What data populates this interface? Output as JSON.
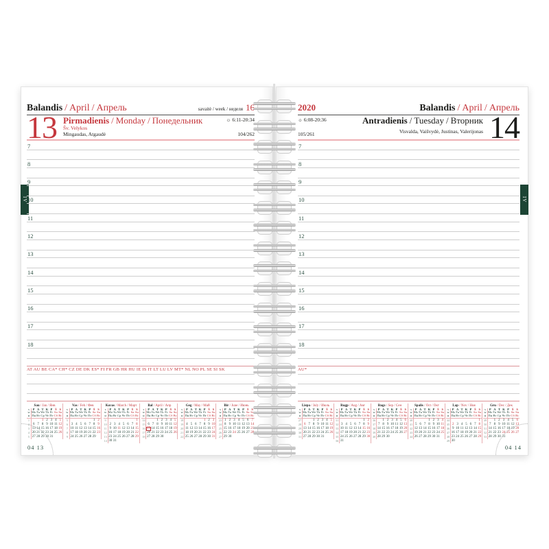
{
  "ui": {
    "sep": "/"
  },
  "hours": [
    "7",
    "8",
    "9",
    "10",
    "11",
    "12",
    "13",
    "14",
    "15",
    "16",
    "17",
    "18"
  ],
  "left_page": {
    "month_title": {
      "lt": "Balandis",
      "en": "April",
      "ru": "Апрель"
    },
    "week_label": "savaitė / week / неделя",
    "week_number": "16",
    "day_number": "13",
    "day_title": {
      "lt": "Pirmadienis",
      "en": "Monday",
      "ru": "Понедельник"
    },
    "holiday": "Šv. Velykos",
    "name_days": "Mingaudas, Atgaudė",
    "sun_icon": "☼",
    "sun_times": "6:11-20:34",
    "day_of_year": "104/262",
    "holiday_countries": "AT AU BE CA* CH* CZ DE DK ES* FI FR GB HR HU IE IS IT LT LU LV MT* NL NO PL SE SI SK",
    "footer_date": "04 13",
    "month_tab": "IV"
  },
  "right_page": {
    "year": "2020",
    "month_title": {
      "lt": "Balandis",
      "en": "April",
      "ru": "Апрель"
    },
    "day_number": "14",
    "day_title": {
      "lt": "Antradienis",
      "en": "Tuesday",
      "ru": "Вторник"
    },
    "name_days": "Visvalda, Vaišvydė, Justinas, Valerijonas",
    "sun_icon": "☼",
    "sun_times": "6:08-20:36",
    "day_of_year": "105/261",
    "holiday_countries": "AU*",
    "footer_date": "04 14",
    "month_tab": "IV"
  },
  "mini_calendars": {
    "week_col_labels": [
      "s",
      "w",
      "н"
    ],
    "weekday_rows": [
      [
        "P",
        "A",
        "T",
        "K",
        "P",
        "Š",
        "S"
      ],
      [
        "Mo",
        "Tu",
        "We",
        "Th",
        "Fr",
        "Sa",
        "Su"
      ],
      [
        "Пн",
        "Вт",
        "Ср",
        "Чт",
        "Пт",
        "Сб",
        "Вс"
      ]
    ],
    "months": [
      {
        "labels": [
          "Sau",
          "Jan",
          "Янв"
        ],
        "red": [
          1,
          5,
          12,
          19,
          26
        ],
        "boxed": null,
        "weeks": [
          {
            "n": "1",
            "d": [
              "",
              "",
              "1",
              "2",
              "3",
              "4",
              "5"
            ]
          },
          {
            "n": "2",
            "d": [
              "6",
              "7",
              "8",
              "9",
              "10",
              "11",
              "12"
            ]
          },
          {
            "n": "3",
            "d": [
              "13",
              "14",
              "15",
              "16",
              "17",
              "18",
              "19"
            ]
          },
          {
            "n": "4",
            "d": [
              "20",
              "21",
              "22",
              "23",
              "24",
              "25",
              "26"
            ]
          },
          {
            "n": "5",
            "d": [
              "27",
              "28",
              "29",
              "30",
              "31",
              "",
              ""
            ]
          }
        ]
      },
      {
        "labels": [
          "Vas",
          "Feb",
          "Фев"
        ],
        "red": [
          2,
          9,
          16,
          23
        ],
        "boxed": null,
        "weeks": [
          {
            "n": "5",
            "d": [
              "",
              "",
              "",
              "",
              "",
              "1",
              "2"
            ]
          },
          {
            "n": "6",
            "d": [
              "3",
              "4",
              "5",
              "6",
              "7",
              "8",
              "9"
            ]
          },
          {
            "n": "7",
            "d": [
              "10",
              "11",
              "12",
              "13",
              "14",
              "15",
              "16"
            ]
          },
          {
            "n": "8",
            "d": [
              "17",
              "18",
              "19",
              "20",
              "21",
              "22",
              "23"
            ]
          },
          {
            "n": "9",
            "d": [
              "24",
              "25",
              "26",
              "27",
              "28",
              "29",
              ""
            ]
          }
        ]
      },
      {
        "labels": [
          "Kovas",
          "March",
          "Март"
        ],
        "red": [
          1,
          8,
          11,
          15,
          22,
          29
        ],
        "boxed": null,
        "weeks": [
          {
            "n": "9",
            "d": [
              "",
              "",
              "",
              "",
              "",
              "",
              "1"
            ]
          },
          {
            "n": "10",
            "d": [
              "2",
              "3",
              "4",
              "5",
              "6",
              "7",
              "8"
            ]
          },
          {
            "n": "11",
            "d": [
              "9",
              "10",
              "11",
              "12",
              "13",
              "14",
              "15"
            ]
          },
          {
            "n": "12",
            "d": [
              "16",
              "17",
              "18",
              "19",
              "20",
              "21",
              "22"
            ]
          },
          {
            "n": "13",
            "d": [
              "23",
              "24",
              "25",
              "26",
              "27",
              "28",
              "29"
            ]
          },
          {
            "n": "14",
            "d": [
              "30",
              "31",
              "",
              "",
              "",
              "",
              ""
            ]
          }
        ]
      },
      {
        "labels": [
          "Bal",
          "April",
          "Апр"
        ],
        "red": [
          5,
          12,
          13,
          19,
          26
        ],
        "boxed": 13,
        "weeks": [
          {
            "n": "14",
            "d": [
              "",
              "",
              "1",
              "2",
              "3",
              "4",
              "5"
            ]
          },
          {
            "n": "15",
            "d": [
              "6",
              "7",
              "8",
              "9",
              "10",
              "11",
              "12"
            ]
          },
          {
            "n": "16",
            "d": [
              "13",
              "14",
              "15",
              "16",
              "17",
              "18",
              "19"
            ]
          },
          {
            "n": "17",
            "d": [
              "20",
              "21",
              "22",
              "23",
              "24",
              "25",
              "26"
            ]
          },
          {
            "n": "18",
            "d": [
              "27",
              "28",
              "29",
              "30",
              "",
              "",
              ""
            ]
          }
        ]
      },
      {
        "labels": [
          "Geg",
          "May",
          "Май"
        ],
        "red": [
          1,
          3,
          10,
          17,
          24,
          31
        ],
        "boxed": null,
        "weeks": [
          {
            "n": "18",
            "d": [
              "",
              "",
              "",
              "",
              "1",
              "2",
              "3"
            ]
          },
          {
            "n": "19",
            "d": [
              "4",
              "5",
              "6",
              "7",
              "8",
              "9",
              "10"
            ]
          },
          {
            "n": "20",
            "d": [
              "11",
              "12",
              "13",
              "14",
              "15",
              "16",
              "17"
            ]
          },
          {
            "n": "21",
            "d": [
              "18",
              "19",
              "20",
              "21",
              "22",
              "23",
              "24"
            ]
          },
          {
            "n": "22",
            "d": [
              "25",
              "26",
              "27",
              "28",
              "29",
              "30",
              "31"
            ]
          }
        ]
      },
      {
        "labels": [
          "Bir",
          "June",
          "Июнь"
        ],
        "red": [
          7,
          14,
          21,
          24,
          28
        ],
        "boxed": null,
        "weeks": [
          {
            "n": "23",
            "d": [
              "1",
              "2",
              "3",
              "4",
              "5",
              "6",
              "7"
            ]
          },
          {
            "n": "24",
            "d": [
              "8",
              "9",
              "10",
              "11",
              "12",
              "13",
              "14"
            ]
          },
          {
            "n": "25",
            "d": [
              "15",
              "16",
              "17",
              "18",
              "19",
              "20",
              "21"
            ]
          },
          {
            "n": "26",
            "d": [
              "22",
              "23",
              "24",
              "25",
              "26",
              "27",
              "28"
            ]
          },
          {
            "n": "27",
            "d": [
              "29",
              "30",
              "",
              "",
              "",
              "",
              ""
            ]
          }
        ]
      },
      {
        "labels": [
          "Liepa",
          "July",
          "Июль"
        ],
        "red": [
          5,
          6,
          12,
          19,
          26
        ],
        "boxed": null,
        "weeks": [
          {
            "n": "27",
            "d": [
              "",
              "",
              "1",
              "2",
              "3",
              "4",
              "5"
            ]
          },
          {
            "n": "28",
            "d": [
              "6",
              "7",
              "8",
              "9",
              "10",
              "11",
              "12"
            ]
          },
          {
            "n": "29",
            "d": [
              "13",
              "14",
              "15",
              "16",
              "17",
              "18",
              "19"
            ]
          },
          {
            "n": "30",
            "d": [
              "20",
              "21",
              "22",
              "23",
              "24",
              "25",
              "26"
            ]
          },
          {
            "n": "31",
            "d": [
              "27",
              "28",
              "29",
              "30",
              "31",
              "",
              ""
            ]
          }
        ]
      },
      {
        "labels": [
          "Rugp",
          "Aug",
          "Авг"
        ],
        "red": [
          2,
          9,
          15,
          16,
          23,
          30
        ],
        "boxed": null,
        "weeks": [
          {
            "n": "31",
            "d": [
              "",
              "",
              "",
              "",
              "",
              "1",
              "2"
            ]
          },
          {
            "n": "32",
            "d": [
              "3",
              "4",
              "5",
              "6",
              "7",
              "8",
              "9"
            ]
          },
          {
            "n": "33",
            "d": [
              "10",
              "11",
              "12",
              "13",
              "14",
              "15",
              "16"
            ]
          },
          {
            "n": "34",
            "d": [
              "17",
              "18",
              "19",
              "20",
              "21",
              "22",
              "23"
            ]
          },
          {
            "n": "35",
            "d": [
              "24",
              "25",
              "26",
              "27",
              "28",
              "29",
              "30"
            ]
          },
          {
            "n": "36",
            "d": [
              "31",
              "",
              "",
              "",
              "",
              "",
              ""
            ]
          }
        ]
      },
      {
        "labels": [
          "Rugs",
          "Sep",
          "Сен"
        ],
        "red": [
          6,
          13,
          20,
          27
        ],
        "boxed": null,
        "weeks": [
          {
            "n": "36",
            "d": [
              "",
              "1",
              "2",
              "3",
              "4",
              "5",
              "6"
            ]
          },
          {
            "n": "37",
            "d": [
              "7",
              "8",
              "9",
              "10",
              "11",
              "12",
              "13"
            ]
          },
          {
            "n": "38",
            "d": [
              "14",
              "15",
              "16",
              "17",
              "18",
              "19",
              "20"
            ]
          },
          {
            "n": "39",
            "d": [
              "21",
              "22",
              "23",
              "24",
              "25",
              "26",
              "27"
            ]
          },
          {
            "n": "40",
            "d": [
              "28",
              "29",
              "30",
              "",
              "",
              "",
              ""
            ]
          }
        ]
      },
      {
        "labels": [
          "Spalis",
          "Oct",
          "Окт"
        ],
        "red": [
          4,
          11,
          18,
          25
        ],
        "boxed": null,
        "weeks": [
          {
            "n": "40",
            "d": [
              "",
              "",
              "",
              "1",
              "2",
              "3",
              "4"
            ]
          },
          {
            "n": "41",
            "d": [
              "5",
              "6",
              "7",
              "8",
              "9",
              "10",
              "11"
            ]
          },
          {
            "n": "42",
            "d": [
              "12",
              "13",
              "14",
              "15",
              "16",
              "17",
              "18"
            ]
          },
          {
            "n": "43",
            "d": [
              "19",
              "20",
              "21",
              "22",
              "23",
              "24",
              "25"
            ]
          },
          {
            "n": "44",
            "d": [
              "26",
              "27",
              "28",
              "29",
              "30",
              "31",
              ""
            ]
          }
        ]
      },
      {
        "labels": [
          "Lap",
          "Nov",
          "Ноя"
        ],
        "red": [
          1,
          2,
          8,
          15,
          22,
          29
        ],
        "boxed": null,
        "weeks": [
          {
            "n": "44",
            "d": [
              "",
              "",
              "",
              "",
              "",
              "",
              "1"
            ]
          },
          {
            "n": "45",
            "d": [
              "2",
              "3",
              "4",
              "5",
              "6",
              "7",
              "8"
            ]
          },
          {
            "n": "46",
            "d": [
              "9",
              "10",
              "11",
              "12",
              "13",
              "14",
              "15"
            ]
          },
          {
            "n": "47",
            "d": [
              "16",
              "17",
              "18",
              "19",
              "20",
              "21",
              "22"
            ]
          },
          {
            "n": "48",
            "d": [
              "23",
              "24",
              "25",
              "26",
              "27",
              "28",
              "29"
            ]
          },
          {
            "n": "49",
            "d": [
              "30",
              "",
              "",
              "",
              "",
              "",
              ""
            ]
          }
        ]
      },
      {
        "labels": [
          "Gru",
          "Dec",
          "Дек"
        ],
        "red": [
          6,
          13,
          20,
          24,
          25,
          26,
          27
        ],
        "boxed": null,
        "weeks": [
          {
            "n": "49",
            "d": [
              "",
              "1",
              "2",
              "3",
              "4",
              "5",
              "6"
            ]
          },
          {
            "n": "50",
            "d": [
              "7",
              "8",
              "9",
              "10",
              "11",
              "12",
              "13"
            ]
          },
          {
            "n": "51",
            "d": [
              "14",
              "15",
              "16",
              "17",
              "18",
              "19",
              "20"
            ]
          },
          {
            "n": "52",
            "d": [
              "21",
              "22",
              "23",
              "24",
              "25",
              "26",
              "27"
            ]
          },
          {
            "n": "53",
            "d": [
              "28",
              "29",
              "30",
              "31",
              "",
              "",
              ""
            ]
          }
        ]
      }
    ]
  },
  "colors": {
    "accent_red": "#c5383e",
    "pink_rule": "#eeb0b4",
    "tab_green": "#1c4434",
    "hour_green": "#2f5244",
    "rule_gray": "#cecece"
  }
}
